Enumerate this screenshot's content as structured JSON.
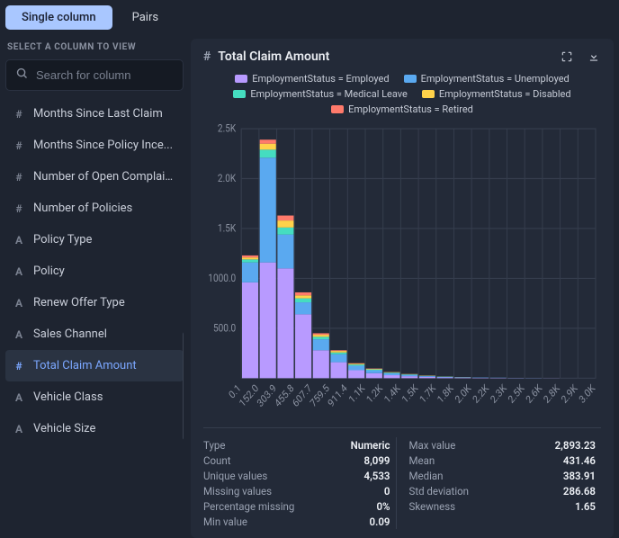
{
  "tabs": {
    "single": "Single column",
    "pairs": "Pairs"
  },
  "sidebar": {
    "title": "SELECT A COLUMN TO VIEW",
    "search_placeholder": "Search for column",
    "columns": [
      {
        "type": "#",
        "label": "Months Since Last Claim"
      },
      {
        "type": "#",
        "label": "Months Since Policy Ince..."
      },
      {
        "type": "#",
        "label": "Number of Open Complaint..."
      },
      {
        "type": "#",
        "label": "Number of Policies"
      },
      {
        "type": "A",
        "label": "Policy Type"
      },
      {
        "type": "A",
        "label": "Policy"
      },
      {
        "type": "A",
        "label": "Renew Offer Type"
      },
      {
        "type": "A",
        "label": "Sales Channel"
      },
      {
        "type": "#",
        "label": "Total Claim Amount",
        "selected": true
      },
      {
        "type": "A",
        "label": "Vehicle Class"
      },
      {
        "type": "A",
        "label": "Vehicle Size"
      }
    ]
  },
  "panel": {
    "title": "Total Claim Amount",
    "legend": [
      {
        "label": "EmploymentStatus = Employed",
        "color": "#b89aff"
      },
      {
        "label": "EmploymentStatus = Unemployed",
        "color": "#5aa9f0"
      },
      {
        "label": "EmploymentStatus = Medical Leave",
        "color": "#45ddc0"
      },
      {
        "label": "EmploymentStatus = Disabled",
        "color": "#ffd24a"
      },
      {
        "label": "EmploymentStatus = Retired",
        "color": "#ff7a6b"
      }
    ],
    "chart": {
      "type": "stacked-histogram",
      "background": "#232a38",
      "grid_color": "#353d4d",
      "y": {
        "min": 0,
        "max": 2500,
        "ticks": [
          {
            "v": 500,
            "label": "500.0"
          },
          {
            "v": 1000,
            "label": "1000.0"
          },
          {
            "v": 1500,
            "label": "1.5K"
          },
          {
            "v": 2000,
            "label": "2.0K"
          },
          {
            "v": 2500,
            "label": "2.5K"
          }
        ]
      },
      "x_labels": [
        "0.1",
        "152.0",
        "303.9",
        "455.8",
        "607.7",
        "759.5",
        "911.4",
        "1.1K",
        "1.2K",
        "1.4K",
        "1.5K",
        "1.7K",
        "1.8K",
        "2.0K",
        "2.2K",
        "2.3K",
        "2.5K",
        "2.6K",
        "2.8K",
        "2.9K",
        "3.0K"
      ],
      "series_order": [
        "Employed",
        "Unemployed",
        "Medical Leave",
        "Disabled",
        "Retired"
      ],
      "series_colors": {
        "Employed": "#b89aff",
        "Unemployed": "#5aa9f0",
        "Medical Leave": "#45ddc0",
        "Disabled": "#ffd24a",
        "Retired": "#ff7a6b"
      },
      "bins": [
        {
          "Employed": 960,
          "Unemployed": 200,
          "Medical Leave": 30,
          "Disabled": 20,
          "Retired": 20
        },
        {
          "Employed": 1160,
          "Unemployed": 1050,
          "Medical Leave": 80,
          "Disabled": 60,
          "Retired": 40
        },
        {
          "Employed": 1100,
          "Unemployed": 340,
          "Medical Leave": 70,
          "Disabled": 70,
          "Retired": 50
        },
        {
          "Employed": 640,
          "Unemployed": 120,
          "Medical Leave": 40,
          "Disabled": 30,
          "Retired": 30
        },
        {
          "Employed": 280,
          "Unemployed": 110,
          "Medical Leave": 25,
          "Disabled": 20,
          "Retired": 15
        },
        {
          "Employed": 160,
          "Unemployed": 80,
          "Medical Leave": 18,
          "Disabled": 15,
          "Retired": 7
        },
        {
          "Employed": 80,
          "Unemployed": 45,
          "Medical Leave": 12,
          "Disabled": 8,
          "Retired": 5
        },
        {
          "Employed": 50,
          "Unemployed": 30,
          "Medical Leave": 8,
          "Disabled": 6,
          "Retired": 3
        },
        {
          "Employed": 30,
          "Unemployed": 20,
          "Medical Leave": 6,
          "Disabled": 4,
          "Retired": 2
        },
        {
          "Employed": 20,
          "Unemployed": 14,
          "Medical Leave": 4,
          "Disabled": 3,
          "Retired": 1
        },
        {
          "Employed": 14,
          "Unemployed": 8,
          "Medical Leave": 2,
          "Disabled": 2,
          "Retired": 1
        },
        {
          "Employed": 8,
          "Unemployed": 6,
          "Medical Leave": 2,
          "Disabled": 1,
          "Retired": 0
        },
        {
          "Employed": 6,
          "Unemployed": 4,
          "Medical Leave": 1,
          "Disabled": 1,
          "Retired": 0
        },
        {
          "Employed": 4,
          "Unemployed": 3,
          "Medical Leave": 0,
          "Disabled": 0,
          "Retired": 0
        },
        {
          "Employed": 3,
          "Unemployed": 2,
          "Medical Leave": 0,
          "Disabled": 0,
          "Retired": 0
        },
        {
          "Employed": 2,
          "Unemployed": 1,
          "Medical Leave": 0,
          "Disabled": 0,
          "Retired": 0
        },
        {
          "Employed": 1,
          "Unemployed": 1,
          "Medical Leave": 0,
          "Disabled": 0,
          "Retired": 0
        },
        {
          "Employed": 1,
          "Unemployed": 0,
          "Medical Leave": 0,
          "Disabled": 0,
          "Retired": 0
        },
        {
          "Employed": 0,
          "Unemployed": 0,
          "Medical Leave": 0,
          "Disabled": 0,
          "Retired": 0
        },
        {
          "Employed": 0,
          "Unemployed": 0,
          "Medical Leave": 0,
          "Disabled": 0,
          "Retired": 0
        }
      ]
    },
    "stats": {
      "left": [
        {
          "k": "Type",
          "v": "Numeric"
        },
        {
          "k": "Count",
          "v": "8,099"
        },
        {
          "k": "Unique values",
          "v": "4,533"
        },
        {
          "k": "Missing values",
          "v": "0"
        },
        {
          "k": "Percentage missing",
          "v": "0%"
        },
        {
          "k": "Min value",
          "v": "0.09"
        }
      ],
      "right": [
        {
          "k": "Max value",
          "v": "2,893.23"
        },
        {
          "k": "Mean",
          "v": "431.46"
        },
        {
          "k": "Median",
          "v": "383.91"
        },
        {
          "k": "Std deviation",
          "v": "286.68"
        },
        {
          "k": "Skewness",
          "v": "1.65"
        }
      ]
    }
  }
}
